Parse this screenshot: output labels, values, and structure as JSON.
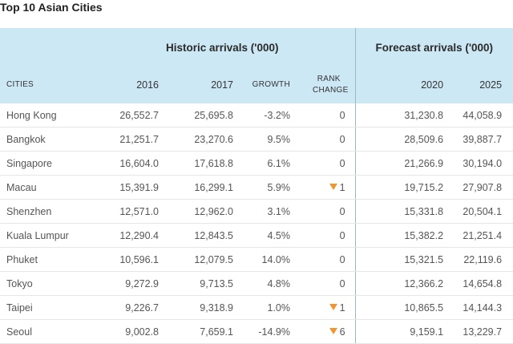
{
  "title": "Top 10 Asian Cities",
  "header": {
    "group_historic": "Historic arrivals ('000)",
    "group_forecast": "Forecast arrivals ('000)",
    "col_cities": "CITIES",
    "col_2016": "2016",
    "col_2017": "2017",
    "col_growth": "GROWTH",
    "col_rank_line1": "RANK",
    "col_rank_line2": "CHANGE",
    "col_2020": "2020",
    "col_2025": "2025"
  },
  "colors": {
    "header_bg": "#cde8f5",
    "down_arrow": "#f0962e"
  },
  "chart_data": {
    "type": "table",
    "title": "Top 10 Asian Cities",
    "columns": [
      "CITIES",
      "2016",
      "2017",
      "GROWTH",
      "RANK CHANGE",
      "2020",
      "2025"
    ],
    "rows": [
      {
        "city": "Hong Kong",
        "y2016": "26,552.7",
        "y2017": "25,695.8",
        "growth": "-3.2%",
        "rank_change": "0",
        "rank_down": false,
        "y2020": "31,230.8",
        "y2025": "44,058.9"
      },
      {
        "city": "Bangkok",
        "y2016": "21,251.7",
        "y2017": "23,270.6",
        "growth": "9.5%",
        "rank_change": "0",
        "rank_down": false,
        "y2020": "28,509.6",
        "y2025": "39,887.7"
      },
      {
        "city": "Singapore",
        "y2016": "16,604.0",
        "y2017": "17,618.8",
        "growth": "6.1%",
        "rank_change": "0",
        "rank_down": false,
        "y2020": "21,266.9",
        "y2025": "30,194.0"
      },
      {
        "city": "Macau",
        "y2016": "15,391.9",
        "y2017": "16,299.1",
        "growth": "5.9%",
        "rank_change": "1",
        "rank_down": true,
        "y2020": "19,715.2",
        "y2025": "27,907.8"
      },
      {
        "city": "Shenzhen",
        "y2016": "12,571.0",
        "y2017": "12,962.0",
        "growth": "3.1%",
        "rank_change": "0",
        "rank_down": false,
        "y2020": "15,331.8",
        "y2025": "20,504.1"
      },
      {
        "city": "Kuala Lumpur",
        "y2016": "12,290.4",
        "y2017": "12,843.5",
        "growth": "4.5%",
        "rank_change": "0",
        "rank_down": false,
        "y2020": "15,382.2",
        "y2025": "21,251.4"
      },
      {
        "city": "Phuket",
        "y2016": "10,596.1",
        "y2017": "12,079.5",
        "growth": "14.0%",
        "rank_change": "0",
        "rank_down": false,
        "y2020": "15,321.5",
        "y2025": "22,119.6"
      },
      {
        "city": "Tokyo",
        "y2016": "9,272.9",
        "y2017": "9,713.5",
        "growth": "4.8%",
        "rank_change": "0",
        "rank_down": false,
        "y2020": "12,366.2",
        "y2025": "14,654.8"
      },
      {
        "city": "Taipei",
        "y2016": "9,226.7",
        "y2017": "9,318.9",
        "growth": "1.0%",
        "rank_change": "1",
        "rank_down": true,
        "y2020": "10,865.5",
        "y2025": "14,144.3"
      },
      {
        "city": "Seoul",
        "y2016": "9,002.8",
        "y2017": "7,659.1",
        "growth": "-14.9%",
        "rank_change": "6",
        "rank_down": true,
        "y2020": "9,159.1",
        "y2025": "13,229.7"
      }
    ]
  }
}
